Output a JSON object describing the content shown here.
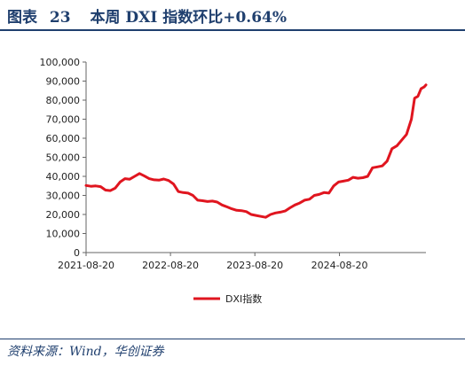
{
  "header": {
    "figure_label": "图表",
    "figure_number": "23",
    "title_text": "本周 DXI 指数环比+0.64%"
  },
  "footer": {
    "source": "资料来源：Wind，华创证券"
  },
  "colors": {
    "accent": "#1f3f6e",
    "series": "#e0151f"
  },
  "chart_data": {
    "type": "line",
    "title": "",
    "xlabel": "",
    "ylabel": "",
    "ylim": [
      0,
      100000
    ],
    "y_ticks": [
      0,
      10000,
      20000,
      30000,
      40000,
      50000,
      60000,
      70000,
      80000,
      90000,
      100000
    ],
    "y_tick_labels": [
      "0",
      "10,000",
      "20,000",
      "30,000",
      "40,000",
      "50,000",
      "60,000",
      "70,000",
      "80,000",
      "90,000",
      "100,000"
    ],
    "x_tick_labels": [
      "2021-08-20",
      "2022-08-20",
      "2023-08-20",
      "2024-08-20"
    ],
    "xlim": [
      "2021-08-20",
      "2025-08-29"
    ],
    "grid": false,
    "legend_position": "bottom-center",
    "series": [
      {
        "name": "DXI指数",
        "x": [
          "2021-08-20",
          "2021-09-10",
          "2021-10-01",
          "2021-10-22",
          "2021-11-12",
          "2021-12-03",
          "2021-12-24",
          "2022-01-14",
          "2022-02-04",
          "2022-02-25",
          "2022-03-18",
          "2022-04-08",
          "2022-04-29",
          "2022-05-20",
          "2022-06-10",
          "2022-07-01",
          "2022-07-22",
          "2022-08-12",
          "2022-09-02",
          "2022-09-23",
          "2022-10-14",
          "2022-11-04",
          "2022-11-25",
          "2022-12-16",
          "2023-01-06",
          "2023-01-27",
          "2023-02-17",
          "2023-03-10",
          "2023-03-31",
          "2023-04-21",
          "2023-05-12",
          "2023-06-02",
          "2023-06-23",
          "2023-07-14",
          "2023-08-04",
          "2023-08-25",
          "2023-09-15",
          "2023-10-06",
          "2023-10-27",
          "2023-11-17",
          "2023-12-08",
          "2023-12-29",
          "2024-01-19",
          "2024-02-09",
          "2024-03-01",
          "2024-03-22",
          "2024-04-12",
          "2024-05-03",
          "2024-05-24",
          "2024-06-14",
          "2024-07-05",
          "2024-07-26",
          "2024-08-16",
          "2024-09-06",
          "2024-09-27",
          "2024-10-18",
          "2024-11-08",
          "2024-11-29",
          "2024-12-20",
          "2025-01-10",
          "2025-01-31",
          "2025-02-21",
          "2025-03-14",
          "2025-04-04",
          "2025-04-25",
          "2025-05-16",
          "2025-06-06",
          "2025-06-27",
          "2025-07-11",
          "2025-07-25",
          "2025-08-08",
          "2025-08-22",
          "2025-08-29"
        ],
        "values": [
          35200,
          34800,
          35000,
          34600,
          32800,
          32500,
          33800,
          37000,
          38800,
          38500,
          40000,
          41500,
          40200,
          38800,
          38200,
          38000,
          38600,
          37800,
          36000,
          32000,
          31500,
          31200,
          30000,
          27500,
          27200,
          26800,
          27000,
          26500,
          25000,
          24000,
          23000,
          22200,
          22000,
          21500,
          20000,
          19500,
          19000,
          18500,
          20000,
          20800,
          21200,
          21800,
          23500,
          25000,
          26000,
          27500,
          28000,
          30000,
          30500,
          31500,
          31200,
          35000,
          37000,
          37500,
          38000,
          39500,
          39000,
          39300,
          40000,
          44500,
          45000,
          45500,
          48000,
          54500,
          56000,
          59000,
          62000,
          70000,
          81000,
          82000,
          86000,
          87000,
          88000
        ]
      }
    ]
  }
}
